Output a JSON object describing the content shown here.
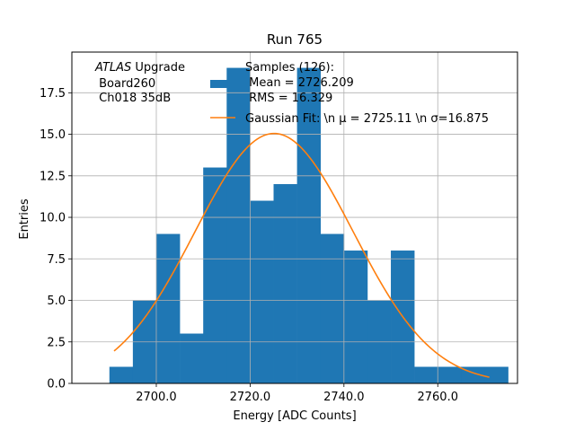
{
  "chart_data": {
    "type": "bar",
    "title": "Run 765",
    "xlabel": "Energy [ADC Counts]",
    "ylabel": "Entries",
    "xlim": [
      2682,
      2777
    ],
    "ylim": [
      0,
      19.95
    ],
    "grid": true,
    "x_ticks": [
      2700,
      2720,
      2740,
      2760
    ],
    "x_tick_labels": [
      "2700.0",
      "2720.0",
      "2740.0",
      "2760.0"
    ],
    "y_ticks": [
      0,
      2.5,
      5,
      7.5,
      10,
      12.5,
      15,
      17.5
    ],
    "y_tick_labels": [
      "0.0",
      "2.5",
      "5.0",
      "7.5",
      "10.0",
      "12.5",
      "15.0",
      "17.5"
    ],
    "histogram": {
      "name": "Samples",
      "color": "#1f77b4",
      "bin_edges": [
        2690,
        2695,
        2700,
        2705,
        2710,
        2715,
        2720,
        2725,
        2730,
        2735,
        2740,
        2745,
        2750,
        2755,
        2760,
        2765,
        2770,
        2775
      ],
      "counts": [
        1,
        5,
        9,
        3,
        13,
        19,
        11,
        12,
        19,
        9,
        8,
        5,
        8,
        1,
        1,
        1,
        1
      ]
    },
    "gaussian_fit": {
      "name": "Gaussian Fit",
      "color": "#ff7f0e",
      "mu": 2725.11,
      "sigma": 16.875,
      "amplitude": 15.05,
      "x_range": [
        2691,
        2771
      ]
    },
    "legend": {
      "position": "top-right",
      "entries": [
        {
          "type": "patch",
          "color": "#1f77b4",
          "lines": [
            "Samples (126):",
            " Mean = 2726.209",
            " RMS = 16.329"
          ]
        },
        {
          "type": "line",
          "color": "#ff7f0e",
          "lines": [
            "Gaussian Fit: \\n μ = 2725.11 \\n σ=16.875"
          ]
        }
      ]
    },
    "annotation": {
      "atlas_label": "ATLAS",
      "atlas_suffix": " Upgrade",
      "line2": " Board260",
      "line3": " Ch018 35dB"
    }
  }
}
